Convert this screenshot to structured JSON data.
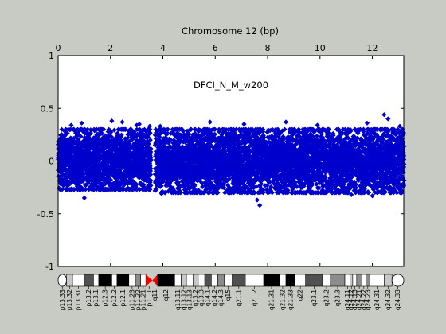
{
  "chart_data": {
    "type": "scatter",
    "title": "Chromosome 12 (bp)",
    "annotation": "DFCI_N_M_w200",
    "xlim": [
      0,
      13.2
    ],
    "ylim": [
      -1,
      1
    ],
    "x_ticks": [
      "0",
      "2",
      "4",
      "6",
      "8",
      "10",
      "12"
    ],
    "x_tick_values": [
      0,
      2,
      4,
      6,
      8,
      10,
      12
    ],
    "y_ticks": [
      "1",
      "0.5",
      "0",
      "-0.5",
      "-1"
    ],
    "y_tick_values": [
      1,
      0.5,
      0,
      -0.5,
      -1
    ],
    "marker_color": "#0000cc",
    "reference_line": {
      "y": 0,
      "color": "#9a9aa0"
    },
    "centromere_gap": [
      3.55,
      3.7
    ],
    "envelope": {
      "segments": [
        {
          "x_range": [
            0,
            3.55
          ],
          "y_range": [
            -0.27,
            0.3
          ]
        },
        {
          "x_range": [
            3.7,
            13.2
          ],
          "y_range": [
            -0.3,
            0.3
          ]
        }
      ],
      "outliers": [
        {
          "x": 0.5,
          "y": 0.34
        },
        {
          "x": 0.9,
          "y": 0.36
        },
        {
          "x": 2.05,
          "y": 0.38
        },
        {
          "x": 2.45,
          "y": 0.37
        },
        {
          "x": 3.0,
          "y": 0.34
        },
        {
          "x": 3.1,
          "y": 0.35
        },
        {
          "x": 3.5,
          "y": 0.33
        },
        {
          "x": 3.9,
          "y": 0.33
        },
        {
          "x": 5.8,
          "y": 0.37
        },
        {
          "x": 7.1,
          "y": 0.35
        },
        {
          "x": 8.7,
          "y": 0.37
        },
        {
          "x": 9.9,
          "y": 0.34
        },
        {
          "x": 11.8,
          "y": 0.36
        },
        {
          "x": 12.45,
          "y": 0.44
        },
        {
          "x": 12.6,
          "y": 0.4
        },
        {
          "x": 13.05,
          "y": 0.33
        },
        {
          "x": 1.0,
          "y": -0.35
        },
        {
          "x": 3.95,
          "y": -0.31
        },
        {
          "x": 7.7,
          "y": -0.42
        },
        {
          "x": 7.6,
          "y": -0.37
        },
        {
          "x": 11.2,
          "y": -0.32
        },
        {
          "x": 12.0,
          "y": -0.33
        }
      ]
    }
  },
  "ideogram": {
    "centromere_color": "#ff0000",
    "bands": [
      {
        "name": "p13.33",
        "start": 0.0,
        "end": 0.32,
        "stain": "gneg"
      },
      {
        "name": "p13.32",
        "start": 0.32,
        "end": 0.55,
        "stain": "gpos25"
      },
      {
        "name": "p13.31",
        "start": 0.55,
        "end": 1.0,
        "stain": "gneg"
      },
      {
        "name": "p13.2",
        "start": 1.0,
        "end": 1.35,
        "stain": "gpos75"
      },
      {
        "name": "p13.1",
        "start": 1.35,
        "end": 1.55,
        "stain": "gneg"
      },
      {
        "name": "p12.3",
        "start": 1.55,
        "end": 2.05,
        "stain": "gpos100"
      },
      {
        "name": "p12.2",
        "start": 2.05,
        "end": 2.25,
        "stain": "gneg"
      },
      {
        "name": "p12.1",
        "start": 2.25,
        "end": 2.7,
        "stain": "gpos100"
      },
      {
        "name": "p11.23",
        "start": 2.7,
        "end": 2.95,
        "stain": "gneg"
      },
      {
        "name": "p11.22",
        "start": 2.95,
        "end": 3.15,
        "stain": "gpos50"
      },
      {
        "name": "p11.21",
        "start": 3.15,
        "end": 3.35,
        "stain": "gneg"
      },
      {
        "name": "p11.1",
        "start": 3.35,
        "end": 3.6,
        "stain": "acen"
      },
      {
        "name": "q11",
        "start": 3.6,
        "end": 3.8,
        "stain": "acen"
      },
      {
        "name": "q12",
        "start": 3.8,
        "end": 4.45,
        "stain": "gpos100"
      },
      {
        "name": "q13.11",
        "start": 4.45,
        "end": 4.7,
        "stain": "gneg"
      },
      {
        "name": "q13.12",
        "start": 4.7,
        "end": 4.9,
        "stain": "gpos25"
      },
      {
        "name": "q13.13",
        "start": 4.9,
        "end": 5.15,
        "stain": "gneg"
      },
      {
        "name": "q13.2",
        "start": 5.15,
        "end": 5.35,
        "stain": "gpos25"
      },
      {
        "name": "q13.3",
        "start": 5.35,
        "end": 5.6,
        "stain": "gneg"
      },
      {
        "name": "q14.1",
        "start": 5.6,
        "end": 5.85,
        "stain": "gpos75"
      },
      {
        "name": "q14.2",
        "start": 5.85,
        "end": 6.1,
        "stain": "gneg"
      },
      {
        "name": "q14.3",
        "start": 6.1,
        "end": 6.35,
        "stain": "gpos50"
      },
      {
        "name": "q15",
        "start": 6.35,
        "end": 6.65,
        "stain": "gneg"
      },
      {
        "name": "q21.1",
        "start": 6.65,
        "end": 7.15,
        "stain": "gpos75"
      },
      {
        "name": "q21.2",
        "start": 7.15,
        "end": 7.85,
        "stain": "gneg"
      },
      {
        "name": "q21.31",
        "start": 7.85,
        "end": 8.45,
        "stain": "gpos100"
      },
      {
        "name": "q21.32",
        "start": 8.45,
        "end": 8.7,
        "stain": "gneg"
      },
      {
        "name": "q21.33",
        "start": 8.7,
        "end": 9.05,
        "stain": "gpos100"
      },
      {
        "name": "q22",
        "start": 9.05,
        "end": 9.45,
        "stain": "gneg"
      },
      {
        "name": "q23.1",
        "start": 9.45,
        "end": 10.1,
        "stain": "gpos75"
      },
      {
        "name": "q23.2",
        "start": 10.1,
        "end": 10.4,
        "stain": "gneg"
      },
      {
        "name": "q23.3",
        "start": 10.4,
        "end": 10.95,
        "stain": "gpos50"
      },
      {
        "name": "q24.11",
        "start": 10.95,
        "end": 11.15,
        "stain": "gneg"
      },
      {
        "name": "q24.12",
        "start": 11.15,
        "end": 11.25,
        "stain": "gpos25"
      },
      {
        "name": "q24.13",
        "start": 11.25,
        "end": 11.4,
        "stain": "gneg"
      },
      {
        "name": "q24.21",
        "start": 11.4,
        "end": 11.6,
        "stain": "gpos50"
      },
      {
        "name": "q24.22",
        "start": 11.6,
        "end": 11.75,
        "stain": "gneg"
      },
      {
        "name": "q24.23",
        "start": 11.75,
        "end": 11.9,
        "stain": "gpos50"
      },
      {
        "name": "q24.31",
        "start": 11.9,
        "end": 12.45,
        "stain": "gneg"
      },
      {
        "name": "q24.32",
        "start": 12.45,
        "end": 12.75,
        "stain": "gpos25"
      },
      {
        "name": "q24.33",
        "start": 12.75,
        "end": 13.2,
        "stain": "gneg"
      }
    ],
    "stain_colors": {
      "gneg": "#ffffff",
      "gpos25": "#c8c8c8",
      "gpos50": "#8c8c8c",
      "gpos75": "#505050",
      "gpos100": "#000000",
      "acen": "#ff0000"
    }
  }
}
